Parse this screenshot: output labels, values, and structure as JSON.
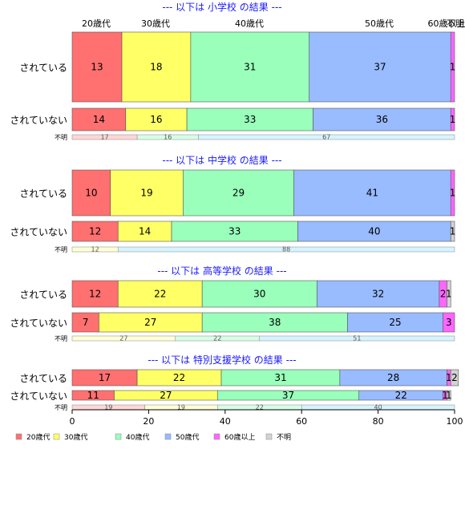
{
  "chart_data": {
    "type": "bar",
    "stacked": true,
    "orientation": "horizontal",
    "xlim": [
      0,
      100
    ],
    "x_ticks": [
      0,
      20,
      40,
      60,
      80,
      100
    ],
    "top_column_labels": [
      "20歳代",
      "30歳代",
      "40歳代",
      "50歳代",
      "60歳以上",
      "不明"
    ],
    "series": [
      {
        "name": "20歳代",
        "color": "#FF7070"
      },
      {
        "name": "30歳代",
        "color": "#FFFF66"
      },
      {
        "name": "40歳代",
        "color": "#99FFBB"
      },
      {
        "name": "50歳代",
        "color": "#99BBFF"
      },
      {
        "name": "60歳以上",
        "color": "#FF66FF"
      },
      {
        "name": "不明",
        "color": "#D3D3D3"
      }
    ],
    "groups": [
      {
        "title": "--- 以下は 小学校 の結果 ---",
        "rows": [
          {
            "label": "されている",
            "values": [
              13,
              18,
              31,
              37,
              1,
              0
            ],
            "labels": [
              "13",
              "18",
              "31",
              "37",
              "1",
              ""
            ]
          },
          {
            "label": "されていない",
            "values": [
              14,
              16,
              33,
              36,
              1,
              0
            ],
            "labels": [
              "14",
              "16",
              "33",
              "36",
              "1",
              ""
            ]
          }
        ],
        "unknown": {
          "label": "不明",
          "values": [
            17,
            16,
            67
          ],
          "labels": [
            "17",
            "16",
            "67"
          ],
          "colors": [
            "#FFD6D6",
            "#D6FFE6",
            "#D6F4FF"
          ]
        }
      },
      {
        "title": "--- 以下は 中学校 の結果 ---",
        "rows": [
          {
            "label": "されている",
            "values": [
              10,
              19,
              29,
              41,
              1,
              0
            ],
            "labels": [
              "10",
              "19",
              "29",
              "41",
              "1",
              ""
            ]
          },
          {
            "label": "されていない",
            "values": [
              12,
              14,
              33,
              40,
              0,
              1
            ],
            "labels": [
              "12",
              "14",
              "33",
              "40",
              "",
              "1"
            ]
          }
        ],
        "unknown": {
          "label": "不明",
          "values": [
            12,
            88
          ],
          "labels": [
            "12",
            "88"
          ],
          "colors": [
            "#FFFFD6",
            "#D6F4FF"
          ]
        }
      },
      {
        "title": "--- 以下は 高等学校 の結果 ---",
        "rows": [
          {
            "label": "されている",
            "values": [
              12,
              22,
              30,
              32,
              2,
              1
            ],
            "labels": [
              "12",
              "22",
              "30",
              "32",
              "2",
              "1"
            ]
          },
          {
            "label": "されていない",
            "values": [
              7,
              27,
              38,
              25,
              3,
              0
            ],
            "labels": [
              "7",
              "27",
              "38",
              "25",
              "3",
              ""
            ]
          }
        ],
        "unknown": {
          "label": "不明",
          "values": [
            27,
            22,
            51
          ],
          "labels": [
            "27",
            "22",
            "51"
          ],
          "colors": [
            "#FFFFD6",
            "#D6FFE6",
            "#D6F4FF"
          ]
        }
      },
      {
        "title": "--- 以下は 特別支援学校 の結果 ---",
        "rows": [
          {
            "label": "されている",
            "values": [
              17,
              22,
              31,
              28,
              1,
              2
            ],
            "labels": [
              "17",
              "22",
              "31",
              "28",
              "1",
              "2"
            ]
          },
          {
            "label": "されていない",
            "values": [
              11,
              27,
              37,
              22,
              1,
              1
            ],
            "labels": [
              "11",
              "27",
              "37",
              "22",
              "1",
              "1"
            ]
          }
        ],
        "unknown": {
          "label": "不明",
          "values": [
            19,
            19,
            22,
            40
          ],
          "labels": [
            "19",
            "19",
            "22",
            "40"
          ],
          "colors": [
            "#FFD6D6",
            "#FFFFD6",
            "#D6FFE6",
            "#D6F4FF"
          ]
        }
      }
    ],
    "legend_position": "bottom-left"
  }
}
